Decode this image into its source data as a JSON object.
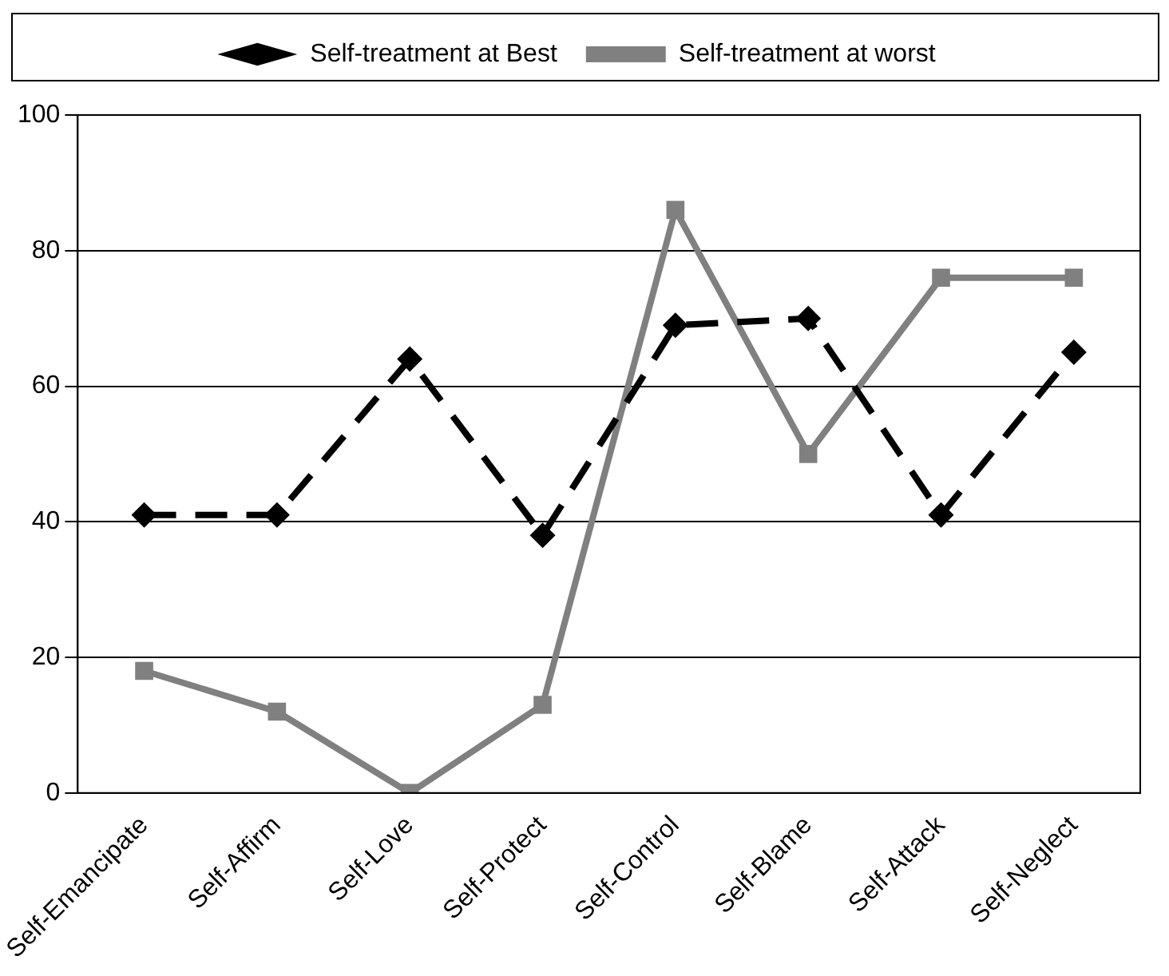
{
  "chart_data": {
    "type": "line",
    "categories": [
      "Self-Emancipate",
      "Self-Affirm",
      "Self-Love",
      "Self-Protect",
      "Self-Control",
      "Self-Blame",
      "Self-Attack",
      "Self-Neglect"
    ],
    "series": [
      {
        "name": "Self-treatment at Best",
        "color": "#000000",
        "values": [
          41,
          41,
          64,
          38,
          69,
          70,
          41,
          65
        ],
        "marker": "diamond",
        "line_style": "dashed"
      },
      {
        "name": "Self-treatment at worst",
        "color": "#808080",
        "values": [
          18,
          12,
          0,
          13,
          86,
          50,
          76,
          76
        ],
        "marker": "square",
        "line_style": "solid"
      }
    ],
    "ylim": [
      0,
      100
    ],
    "yticks": [
      0,
      20,
      40,
      60,
      80,
      100
    ],
    "grid": "y",
    "legend": "top"
  }
}
